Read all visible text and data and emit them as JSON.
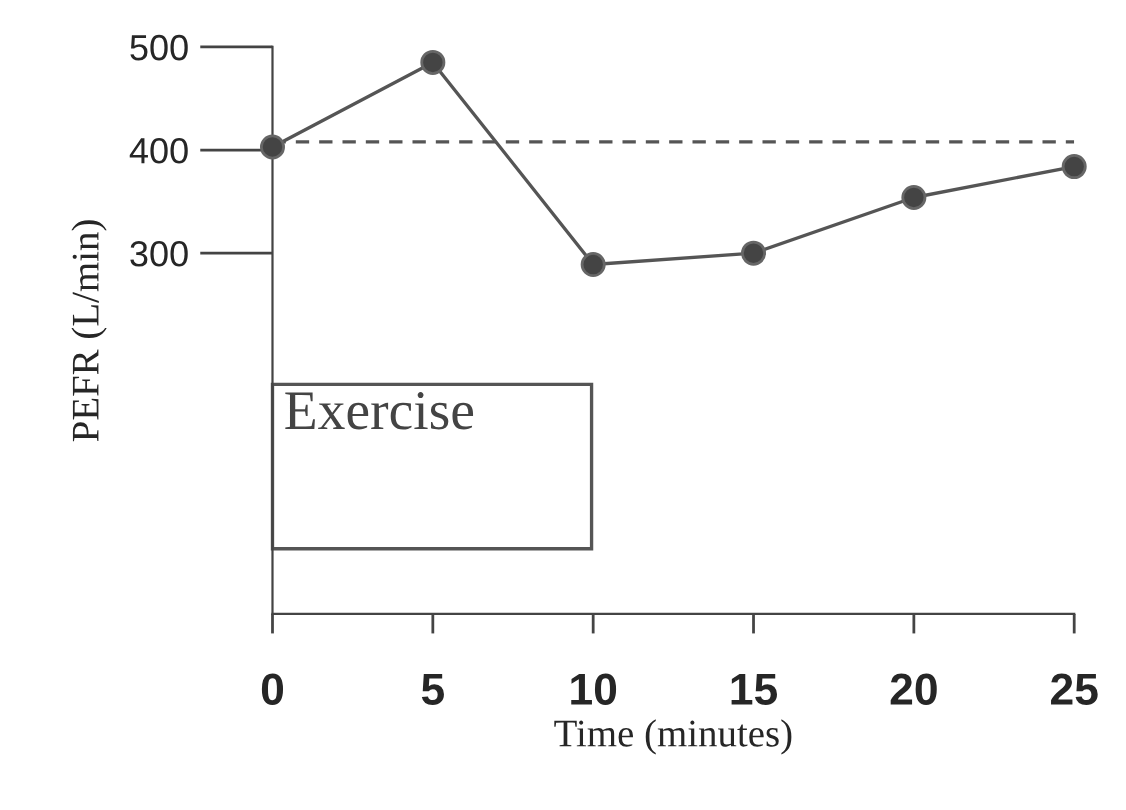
{
  "chart_data": {
    "type": "line",
    "xlabel": "Time (minutes)",
    "ylabel": "PEFR (L/min)",
    "x": [
      0,
      5,
      10,
      15,
      20,
      25
    ],
    "series": [
      {
        "color": "#555555",
        "values": [
          403,
          485,
          289,
          300,
          354,
          384
        ]
      }
    ],
    "xlim": [
      0,
      25
    ],
    "ylim": [
      -50,
      500
    ],
    "xticks": [
      0,
      5,
      10,
      15,
      20,
      25
    ],
    "yticks": [
      300,
      400,
      500
    ],
    "ref_lines": [
      {
        "axis": "y",
        "value": 408,
        "color": "#555555",
        "line_style": "dashed"
      }
    ],
    "annotations": [
      "Exercise"
    ],
    "marker": "circle",
    "line_style": "solid",
    "grid": false,
    "legend": false
  }
}
